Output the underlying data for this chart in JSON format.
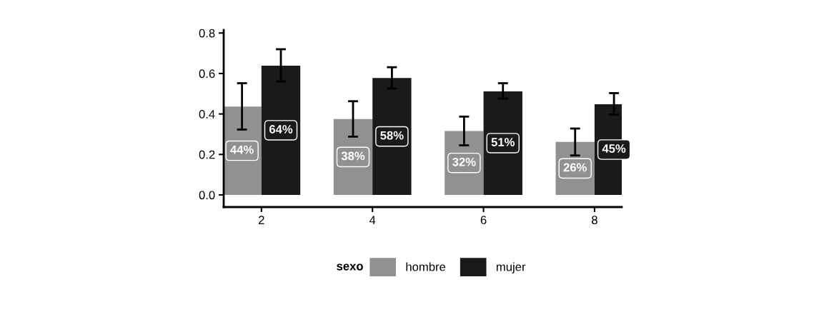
{
  "chart_data": {
    "type": "bar",
    "x": [
      2,
      4,
      6,
      8
    ],
    "xlim": [
      1.32,
      8.49
    ],
    "xticks": [
      2,
      4,
      6,
      8
    ],
    "ylim": [
      -0.06,
      0.815
    ],
    "yticks": [
      {
        "value": 0,
        "label": "0.0"
      },
      {
        "value": 0.2,
        "label": "0.2"
      },
      {
        "value": 0.4,
        "label": "0.4"
      },
      {
        "value": 0.6,
        "label": "0.6"
      },
      {
        "value": 0.8,
        "label": "0.8"
      }
    ],
    "legend": "bottom",
    "legend_title": "sexo",
    "grid": false,
    "series": [
      {
        "name": "hombre",
        "color": "#919191",
        "values": [
          0.437,
          0.375,
          0.316,
          0.262
        ],
        "errors": [
          [
            0.323,
            0.552
          ],
          [
            0.288,
            0.463
          ],
          [
            0.245,
            0.387
          ],
          [
            0.195,
            0.328
          ]
        ],
        "value_labels": [
          "44%",
          "38%",
          "32%",
          "26%"
        ]
      },
      {
        "name": "mujer",
        "color": "#1a1a1a",
        "values": [
          0.639,
          0.578,
          0.512,
          0.448
        ],
        "errors": [
          [
            0.561,
            0.72
          ],
          [
            0.526,
            0.631
          ],
          [
            0.476,
            0.552
          ],
          [
            0.397,
            0.503
          ]
        ],
        "value_labels": [
          "64%",
          "58%",
          "51%",
          "45%"
        ]
      }
    ]
  }
}
